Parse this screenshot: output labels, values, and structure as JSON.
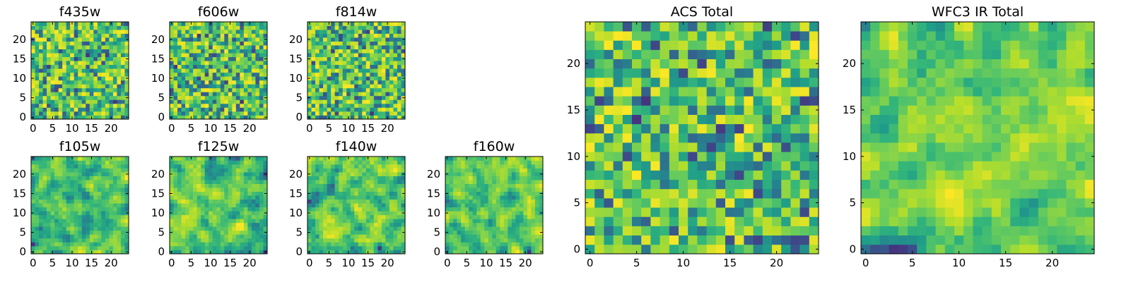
{
  "chart_data": [
    {
      "type": "heatmap",
      "title": "f435w",
      "seed": 11,
      "smooth": 0,
      "xticks": [
        0,
        5,
        10,
        15,
        20
      ],
      "yticks": [
        0,
        5,
        10,
        15,
        20
      ],
      "xlim": [
        -0.5,
        24.5
      ],
      "ylim": [
        -0.5,
        24.5
      ],
      "grid": false,
      "colormap": "viridis"
    },
    {
      "type": "heatmap",
      "title": "f606w",
      "seed": 23,
      "smooth": 0,
      "xticks": [
        0,
        5,
        10,
        15,
        20
      ],
      "yticks": [
        0,
        5,
        10,
        15,
        20
      ],
      "xlim": [
        -0.5,
        24.5
      ],
      "ylim": [
        -0.5,
        24.5
      ],
      "grid": false,
      "colormap": "viridis"
    },
    {
      "type": "heatmap",
      "title": "f814w",
      "seed": 37,
      "smooth": 0,
      "xticks": [
        0,
        5,
        10,
        15,
        20
      ],
      "yticks": [
        0,
        5,
        10,
        15,
        20
      ],
      "xlim": [
        -0.5,
        24.5
      ],
      "ylim": [
        -0.5,
        24.5
      ],
      "grid": false,
      "colormap": "viridis"
    },
    {
      "type": "heatmap",
      "title": "f105w",
      "seed": 41,
      "smooth": 1,
      "xticks": [
        0,
        5,
        10,
        15,
        20
      ],
      "yticks": [
        0,
        5,
        10,
        15,
        20
      ],
      "xlim": [
        -0.5,
        24.5
      ],
      "ylim": [
        -0.5,
        24.5
      ],
      "grid": false,
      "colormap": "viridis"
    },
    {
      "type": "heatmap",
      "title": "f125w",
      "seed": 53,
      "smooth": 1,
      "xticks": [
        0,
        5,
        10,
        15,
        20
      ],
      "yticks": [
        0,
        5,
        10,
        15,
        20
      ],
      "xlim": [
        -0.5,
        24.5
      ],
      "ylim": [
        -0.5,
        24.5
      ],
      "grid": false,
      "colormap": "viridis"
    },
    {
      "type": "heatmap",
      "title": "f140w",
      "seed": 67,
      "smooth": 1,
      "xticks": [
        0,
        5,
        10,
        15,
        20
      ],
      "yticks": [
        0,
        5,
        10,
        15,
        20
      ],
      "xlim": [
        -0.5,
        24.5
      ],
      "ylim": [
        -0.5,
        24.5
      ],
      "grid": false,
      "colormap": "viridis"
    },
    {
      "type": "heatmap",
      "title": "f160w",
      "seed": 79,
      "smooth": 1,
      "xticks": [
        0,
        5,
        10,
        15,
        20
      ],
      "yticks": [
        0,
        5,
        10,
        15,
        20
      ],
      "xlim": [
        -0.5,
        24.5
      ],
      "ylim": [
        -0.5,
        24.5
      ],
      "grid": false,
      "colormap": "viridis"
    },
    {
      "type": "heatmap",
      "title": "ACS Total",
      "seed": 83,
      "smooth": 0,
      "xticks": [
        0,
        5,
        10,
        15,
        20
      ],
      "yticks": [
        0,
        5,
        10,
        15,
        20
      ],
      "xlim": [
        -0.5,
        24.5
      ],
      "ylim": [
        -0.5,
        24.5
      ],
      "grid": false,
      "colormap": "viridis"
    },
    {
      "type": "heatmap",
      "title": "WFC3 IR Total",
      "seed": 97,
      "smooth": 1,
      "xticks": [
        0,
        5,
        10,
        15,
        20
      ],
      "yticks": [
        0,
        5,
        10,
        15,
        20
      ],
      "xlim": [
        -0.5,
        24.5
      ],
      "ylim": [
        -0.5,
        24.5
      ],
      "grid": false,
      "colormap": "viridis"
    }
  ],
  "colors": {
    "viridis": [
      "#440154",
      "#482878",
      "#3e4989",
      "#31688e",
      "#26828e",
      "#1f9e89",
      "#35b779",
      "#6ece58",
      "#b5de2b",
      "#fde725"
    ]
  }
}
